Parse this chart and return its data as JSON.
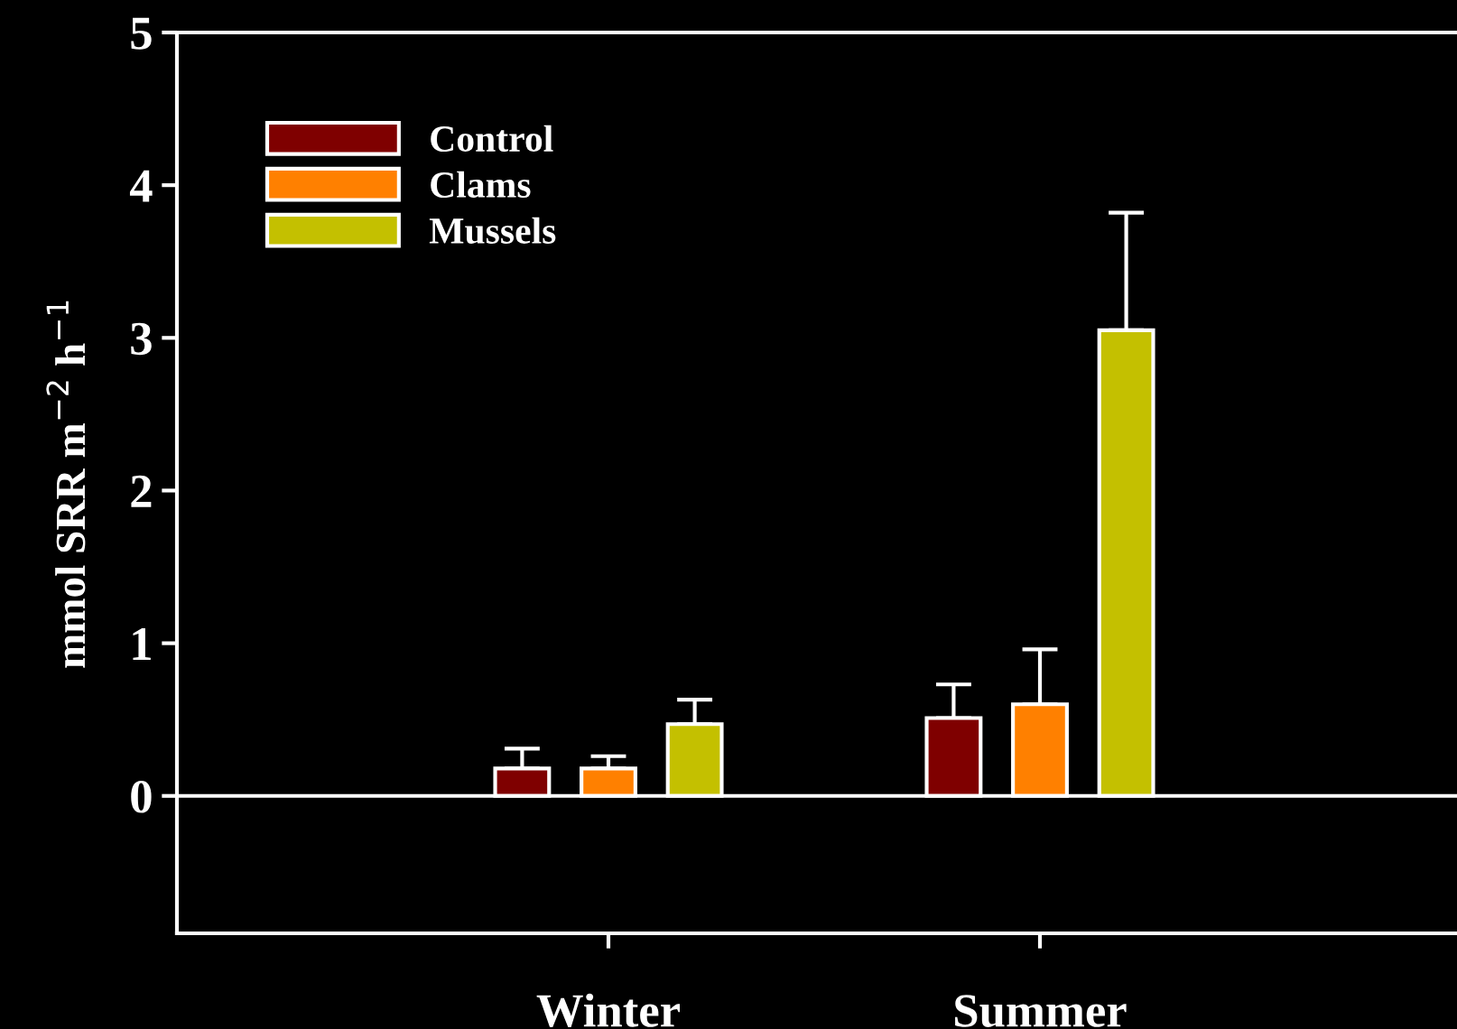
{
  "chart_data": {
    "type": "bar",
    "ylabel": "mmol SRR m$^{−2}$ h$^{−1}$",
    "categories": [
      "Winter",
      "Summer"
    ],
    "series": [
      {
        "name": "Control",
        "color": "#7f0000",
        "values": [
          0.18,
          0.51
        ],
        "errors": [
          [
            0.18,
            0.31
          ],
          [
            0.51,
            0.73
          ]
        ]
      },
      {
        "name": "Clams",
        "color": "#ff8000",
        "values": [
          0.18,
          0.6
        ],
        "errors": [
          [
            0.18,
            0.26
          ],
          [
            0.6,
            0.96
          ]
        ]
      },
      {
        "name": "Mussels",
        "color": "#c4c000",
        "values": [
          0.47,
          3.05
        ],
        "errors": [
          [
            0.47,
            0.63
          ],
          [
            3.05,
            3.82
          ]
        ]
      }
    ],
    "ylim": [
      -0.9,
      5
    ],
    "yticks": [
      0,
      1,
      2,
      3,
      4,
      5
    ],
    "ref_lines": [
      {
        "axis": "y",
        "value": 0,
        "color": "#ffffff"
      }
    ],
    "legend": "top left",
    "grid": false
  }
}
